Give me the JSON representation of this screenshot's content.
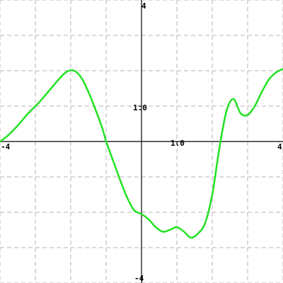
{
  "chart_data": {
    "type": "line",
    "title": "",
    "xlabel": "",
    "ylabel": "",
    "xlim": [
      -4,
      4
    ],
    "ylim": [
      -4,
      4
    ],
    "grid": true,
    "grid_step": 1,
    "tick_labels": {
      "x_min": "-4",
      "x_max": "4",
      "x_unit": "1.0",
      "y_max": "4",
      "y_min": "-4",
      "y_unit": "1.0"
    },
    "series_color": "#22e222",
    "series": [
      {
        "x": [
          -4.0,
          -3.8,
          -3.5,
          -3.2,
          -2.9,
          -2.6,
          -2.3,
          -2.1,
          -1.9,
          -1.7,
          -1.5,
          -1.3,
          -1.1,
          -1.0,
          -0.8,
          -0.6,
          -0.4,
          -0.2,
          0.0,
          0.2,
          0.4,
          0.6,
          0.8,
          1.0,
          1.2,
          1.4,
          1.6,
          1.8,
          2.0,
          2.2,
          2.4,
          2.6,
          2.8,
          3.0,
          3.2,
          3.4,
          3.6,
          3.8,
          4.0
        ],
        "values": [
          0.0,
          0.15,
          0.45,
          0.8,
          1.1,
          1.45,
          1.8,
          1.98,
          2.0,
          1.8,
          1.4,
          0.9,
          0.35,
          0.0,
          -0.55,
          -1.1,
          -1.6,
          -1.95,
          -2.05,
          -2.2,
          -2.42,
          -2.55,
          -2.5,
          -2.42,
          -2.55,
          -2.72,
          -2.6,
          -2.3,
          -1.5,
          -0.2,
          0.85,
          1.2,
          0.8,
          0.75,
          1.0,
          1.4,
          1.75,
          1.95,
          2.05
        ]
      }
    ]
  }
}
